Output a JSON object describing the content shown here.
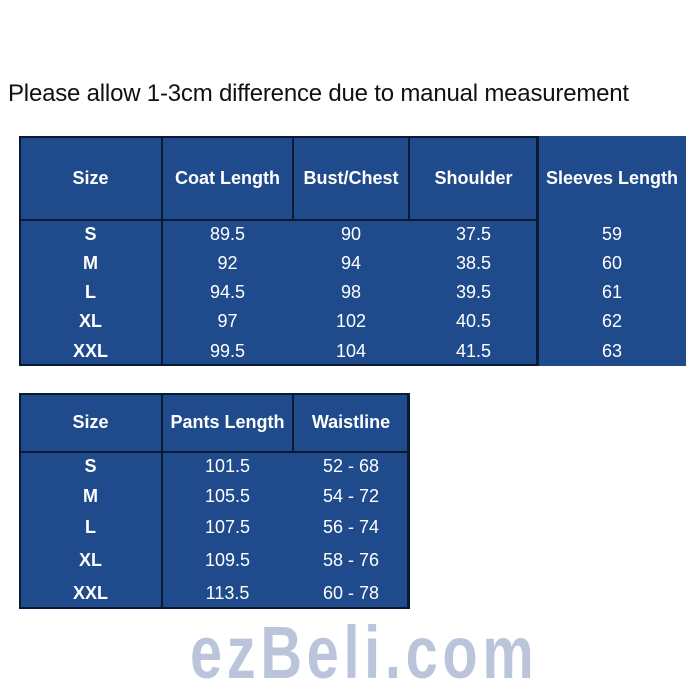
{
  "note": "Please allow 1-3cm difference due to manual measurement",
  "top_table": {
    "headers": [
      "Size",
      "Coat Length",
      "Bust/Chest",
      "Shoulder",
      "Sleeves Length"
    ],
    "rows": [
      [
        "S",
        "89.5",
        "90",
        "37.5",
        "59"
      ],
      [
        "M",
        "92",
        "94",
        "38.5",
        "60"
      ],
      [
        "L",
        "94.5",
        "98",
        "39.5",
        "61"
      ],
      [
        "XL",
        "97",
        "102",
        "40.5",
        "62"
      ],
      [
        "XXL",
        "99.5",
        "104",
        "41.5",
        "63"
      ]
    ]
  },
  "bottom_table": {
    "headers": [
      "Size",
      "Pants Length",
      "Waistline"
    ],
    "rows": [
      [
        "S",
        "101.5",
        "52 - 68"
      ],
      [
        "M",
        "105.5",
        "54 - 72"
      ],
      [
        "L",
        "107.5",
        "56 - 74"
      ],
      [
        "XL",
        "109.5",
        "58 - 76"
      ],
      [
        "XXL",
        "113.5",
        "60 - 78"
      ]
    ]
  },
  "watermark": "ezBeli.com",
  "colors": {
    "table_bg": "#1f4a8c",
    "text": "#ffffff"
  }
}
